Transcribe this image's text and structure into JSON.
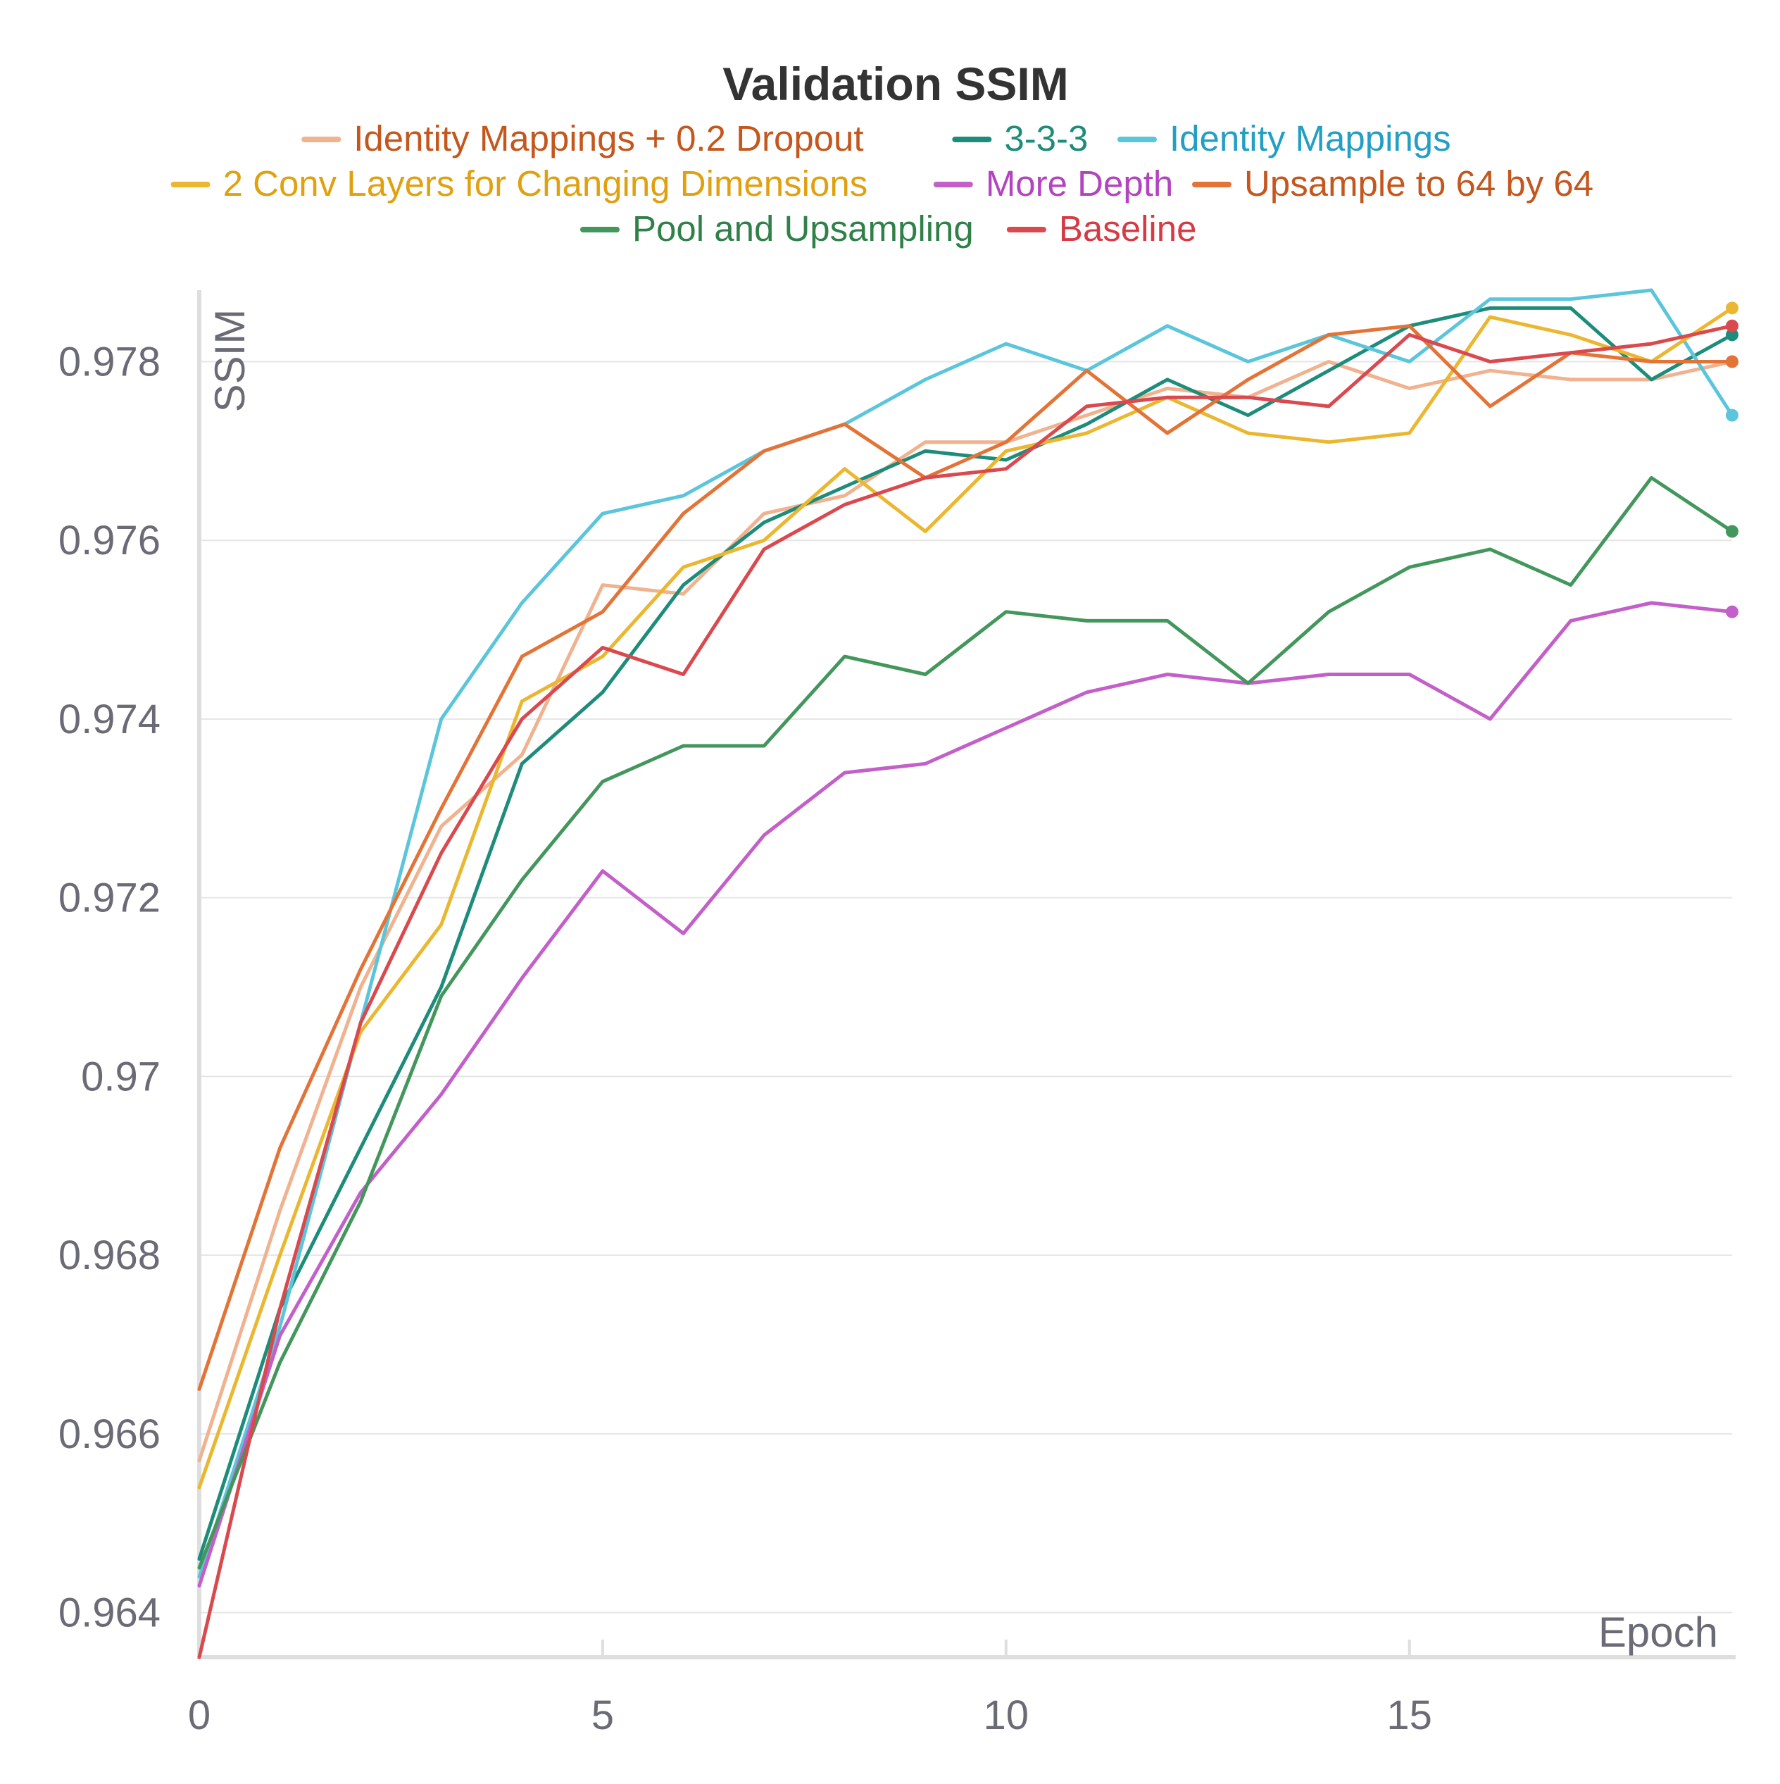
{
  "chart_data": {
    "type": "line",
    "title": "Validation SSIM",
    "xlabel": "Epoch",
    "ylabel": "SSIM",
    "xlim": [
      0,
      19
    ],
    "ylim": [
      0.9635,
      0.9788
    ],
    "xticks": [
      0,
      5,
      10,
      15
    ],
    "xtick_labels": [
      "0",
      "5",
      "10",
      "15"
    ],
    "yticks": [
      0.964,
      0.966,
      0.968,
      0.97,
      0.972,
      0.974,
      0.976,
      0.978
    ],
    "ytick_labels": [
      "0.964",
      "0.966",
      "0.968",
      "0.97",
      "0.972",
      "0.974",
      "0.976",
      "0.978"
    ],
    "grid": true,
    "legend_position": "top",
    "x": [
      0,
      1,
      2,
      3,
      4,
      5,
      6,
      7,
      8,
      9,
      10,
      11,
      12,
      13,
      14,
      15,
      16,
      17,
      18,
      19
    ],
    "series": [
      {
        "name": "Identity Mappings + 0.2 Dropout",
        "color": "#f0b28f",
        "text_color": "#c4571d",
        "values": [
          0.9657,
          0.9685,
          0.971,
          0.9728,
          0.9736,
          0.9755,
          0.9754,
          0.9763,
          0.9765,
          0.9771,
          0.9771,
          0.9774,
          0.9777,
          0.9776,
          0.978,
          0.9777,
          0.9779,
          0.9778,
          0.9778,
          0.978
        ]
      },
      {
        "name": "3-3-3",
        "color": "#1e8c7a",
        "text_color": "#1e8c7a",
        "values": [
          0.9646,
          0.9674,
          0.9692,
          0.971,
          0.9735,
          0.9743,
          0.9755,
          0.9762,
          0.9766,
          0.977,
          0.9769,
          0.9773,
          0.9778,
          0.9774,
          0.9779,
          0.9784,
          0.9786,
          0.9786,
          0.9778,
          0.9783
        ]
      },
      {
        "name": "Identity Mappings",
        "color": "#5bc5dc",
        "text_color": "#239fc4",
        "values": [
          0.9644,
          0.9672,
          0.9706,
          0.974,
          0.9753,
          0.9763,
          0.9765,
          0.977,
          0.9773,
          0.9778,
          0.9782,
          0.9779,
          0.9784,
          0.978,
          0.9783,
          0.978,
          0.9787,
          0.9787,
          0.9788,
          0.9774
        ]
      },
      {
        "name": "2 Conv Layers for Changing Dimensions",
        "color": "#ebb731",
        "text_color": "#e0a111",
        "values": [
          0.9654,
          0.968,
          0.9705,
          0.9717,
          0.9742,
          0.9747,
          0.9757,
          0.976,
          0.9768,
          0.9761,
          0.977,
          0.9772,
          0.9776,
          0.9772,
          0.9771,
          0.9772,
          0.9785,
          0.9783,
          0.978,
          0.9786
        ]
      },
      {
        "name": "More Depth",
        "color": "#c35fc9",
        "text_color": "#b344bf",
        "values": [
          0.9643,
          0.9671,
          0.9687,
          0.9698,
          0.9711,
          0.9723,
          0.9716,
          0.9727,
          0.9734,
          0.9735,
          0.9739,
          0.9743,
          0.9745,
          0.9744,
          0.9745,
          0.9745,
          0.974,
          0.9751,
          0.9753,
          0.9752
        ]
      },
      {
        "name": "Upsample to 64 by 64",
        "color": "#e37336",
        "text_color": "#c4571d",
        "values": [
          0.9665,
          0.9692,
          0.9712,
          0.973,
          0.9747,
          0.9752,
          0.9763,
          0.977,
          0.9773,
          0.9767,
          0.9771,
          0.9779,
          0.9772,
          0.9778,
          0.9783,
          0.9784,
          0.9775,
          0.9781,
          0.978,
          0.978
        ]
      },
      {
        "name": "Pool and Upsampling",
        "color": "#43975c",
        "text_color": "#2f8049",
        "values": [
          0.9645,
          0.9668,
          0.9686,
          0.9709,
          0.9722,
          0.9733,
          0.9737,
          0.9737,
          0.9747,
          0.9745,
          0.9752,
          0.9751,
          0.9751,
          0.9744,
          0.9752,
          0.9757,
          0.9759,
          0.9755,
          0.9767,
          0.9761
        ]
      },
      {
        "name": "Baseline",
        "color": "#d9494e",
        "text_color": "#d63a44",
        "values": [
          0.9635,
          0.9674,
          0.9706,
          0.9725,
          0.974,
          0.9748,
          0.9745,
          0.9759,
          0.9764,
          0.9767,
          0.9768,
          0.9775,
          0.9776,
          0.9776,
          0.9775,
          0.9783,
          0.978,
          0.9781,
          0.9782,
          0.9784
        ]
      }
    ]
  }
}
